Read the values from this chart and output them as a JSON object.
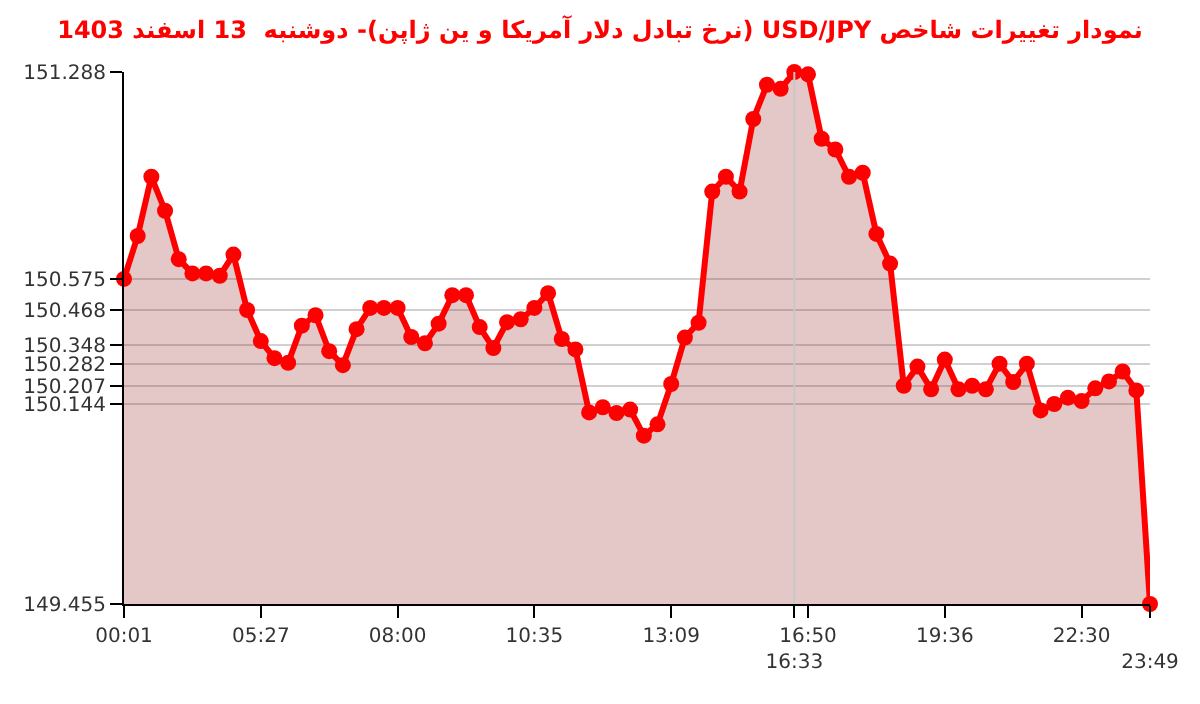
{
  "chart_data": {
    "type": "area",
    "title": "نمودار تغییرات شاخص USD/JPY (نرخ تبادل دلار آمریکا و ین ژاپن)- دوشنبه  13 اسفند 1403",
    "categories": [
      "00:01",
      null,
      null,
      null,
      null,
      null,
      null,
      null,
      null,
      null,
      "05:27",
      null,
      null,
      null,
      null,
      null,
      null,
      null,
      null,
      null,
      "08:00",
      null,
      null,
      null,
      null,
      null,
      null,
      null,
      null,
      null,
      "10:35",
      null,
      null,
      null,
      null,
      null,
      null,
      null,
      null,
      null,
      "13:09",
      null,
      null,
      null,
      null,
      null,
      null,
      null,
      null,
      "16:33",
      "16:50",
      null,
      null,
      null,
      null,
      null,
      null,
      null,
      null,
      null,
      "19:36",
      null,
      null,
      null,
      null,
      null,
      null,
      null,
      null,
      null,
      "22:30",
      null,
      null,
      null,
      null,
      "23:49"
    ],
    "series": [
      {
        "color": "#ff0000",
        "values": [
          150.575,
          150.723,
          150.927,
          150.81,
          150.643,
          150.594,
          150.594,
          150.586,
          150.659,
          150.468,
          150.361,
          150.302,
          150.286,
          150.414,
          150.45,
          150.326,
          150.278,
          150.402,
          150.475,
          150.475,
          150.475,
          150.375,
          150.353,
          150.421,
          150.519,
          150.519,
          150.409,
          150.337,
          150.426,
          150.436,
          150.475,
          150.526,
          150.368,
          150.332,
          150.115,
          150.133,
          150.113,
          150.125,
          150.035,
          150.074,
          150.213,
          150.373,
          150.424,
          150.876,
          150.927,
          150.876,
          151.126,
          151.244,
          151.23,
          151.288,
          151.28,
          151.058,
          151.021,
          150.927,
          150.941,
          150.73,
          150.628,
          150.207,
          150.273,
          150.195,
          150.297,
          150.195,
          150.207,
          150.195,
          150.283,
          150.22,
          150.283,
          150.122,
          150.144,
          150.166,
          150.154,
          150.198,
          150.222,
          150.256,
          150.191,
          149.455
        ]
      }
    ],
    "ylim": [
      149.455,
      151.288
    ],
    "yticks": [
      149.455,
      150.144,
      150.207,
      150.282,
      150.348,
      150.468,
      150.575,
      151.288
    ],
    "grid": "y",
    "marker": "circle",
    "line_style": "solid",
    "legend": false,
    "ref_lines": [
      {
        "axis": "x",
        "value": "16:33",
        "color": "#c8c8c8"
      }
    ]
  }
}
